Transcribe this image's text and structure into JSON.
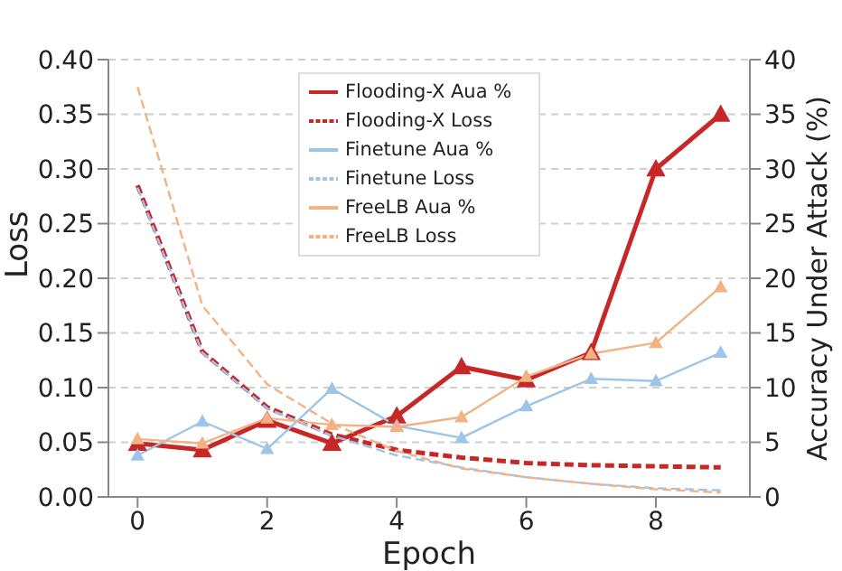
{
  "chart_data": {
    "type": "line",
    "xlabel": "Epoch",
    "ylabel": "Loss",
    "y2label": "Accuracy Under Attack (%)",
    "x": [
      0,
      1,
      2,
      3,
      4,
      5,
      6,
      7,
      8,
      9
    ],
    "xlim": [
      -0.45,
      9.45
    ],
    "xticks": [
      0,
      2,
      4,
      6,
      8
    ],
    "ylim": [
      0,
      0.4
    ],
    "yticks": [
      {
        "value": 0,
        "label": "0.00"
      },
      {
        "value": 0.05,
        "label": "0.05"
      },
      {
        "value": 0.1,
        "label": "0.10"
      },
      {
        "value": 0.15,
        "label": "0.15"
      },
      {
        "value": 0.2,
        "label": "0.20"
      },
      {
        "value": 0.25,
        "label": "0.25"
      },
      {
        "value": 0.3,
        "label": "0.30"
      },
      {
        "value": 0.35,
        "label": "0.35"
      },
      {
        "value": 0.4,
        "label": "0.40"
      }
    ],
    "y2lim": [
      0,
      40
    ],
    "y2ticks": [
      0,
      5,
      10,
      15,
      20,
      25,
      30,
      35,
      40
    ],
    "grid": "y",
    "legend": "top",
    "series": [
      {
        "name": "Flooding-X Aua %",
        "color": "#c62828",
        "axis": "y2",
        "marker": "triangle",
        "line_style": "solid",
        "values": [
          4.9,
          4.3,
          7.0,
          4.9,
          7.4,
          11.9,
          10.7,
          13.2,
          30,
          35
        ]
      },
      {
        "name": "Flooding-X Loss",
        "color": "#c62828",
        "marker": "none",
        "line_style": "dashed",
        "values": [
          0.285,
          0.133,
          0.082,
          0.057,
          0.043,
          0.036,
          0.031,
          0.029,
          0.028,
          0.027
        ]
      },
      {
        "name": "Finetune Aua %",
        "color": "#9ec5e8",
        "axis": "y2",
        "marker": "triangle",
        "line_style": "solid",
        "values": [
          3.8,
          6.9,
          4.4,
          9.9,
          6.5,
          5.4,
          8.3,
          10.8,
          10.6,
          13.2
        ]
      },
      {
        "name": "Finetune Loss",
        "color": "#9ec5e8",
        "marker": "none",
        "line_style": "dashed",
        "values": [
          0.283,
          0.132,
          0.081,
          0.056,
          0.038,
          0.027,
          0.018,
          0.012,
          0.008,
          0.006
        ]
      },
      {
        "name": "FreeLB Aua %",
        "color": "#f4b183",
        "axis": "y2",
        "marker": "triangle",
        "line_style": "solid",
        "values": [
          5.3,
          4.9,
          7.2,
          6.6,
          6.4,
          7.3,
          11.0,
          13.1,
          14.1,
          19.2
        ]
      },
      {
        "name": "FreeLB Loss",
        "color": "#f4b183",
        "marker": "none",
        "line_style": "dashed",
        "values": [
          0.375,
          0.175,
          0.103,
          0.067,
          0.042,
          0.026,
          0.018,
          0.012,
          0.007,
          0.004
        ]
      }
    ]
  }
}
